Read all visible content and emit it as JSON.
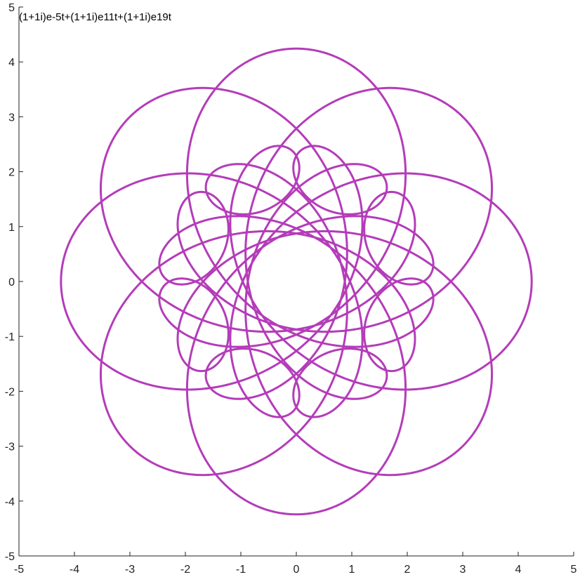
{
  "chart_data": {
    "type": "line",
    "title": "(1+1i)e-5t+(1+1i)e11t+(1+1i)e19t",
    "xlabel": "",
    "ylabel": "",
    "xlim": [
      -5,
      5
    ],
    "ylim": [
      -5,
      5
    ],
    "x_ticks": [
      -5,
      -4,
      -3,
      -2,
      -1,
      0,
      1,
      2,
      3,
      4,
      5
    ],
    "y_ticks": [
      -5,
      -4,
      -3,
      -2,
      -1,
      0,
      1,
      2,
      3,
      4,
      5
    ],
    "grid": false,
    "series": [
      {
        "terms": [
          {
            "re": 1,
            "im": 1,
            "freq": -5
          },
          {
            "re": 1,
            "im": 1,
            "freq": 11
          },
          {
            "re": 1,
            "im": 1,
            "freq": 19
          }
        ],
        "t_range": [
          0,
          6.283185307179586
        ],
        "color": "#b43cb9"
      }
    ]
  }
}
